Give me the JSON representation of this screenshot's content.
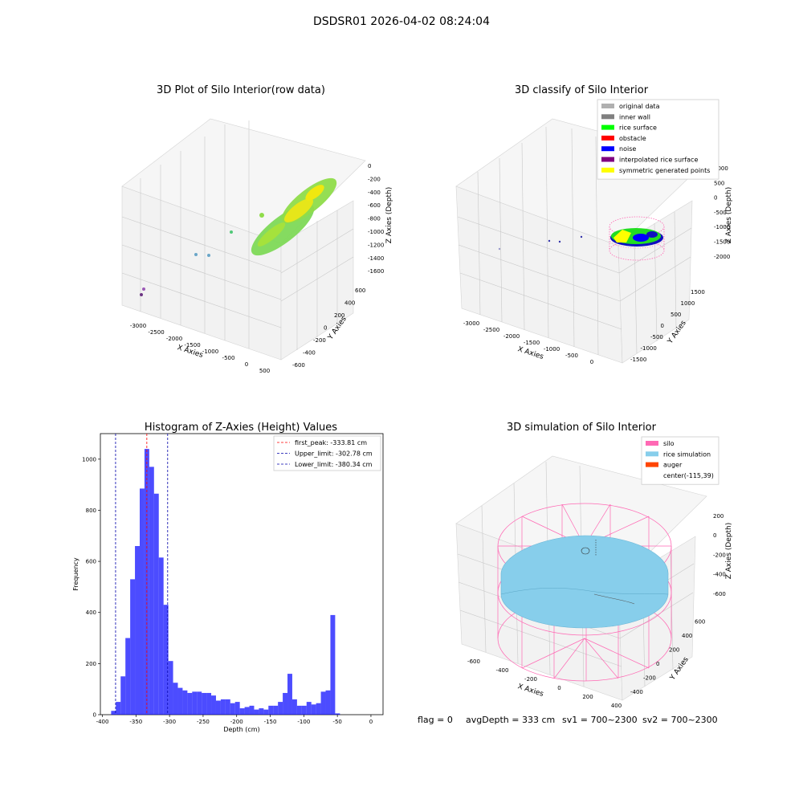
{
  "suptitle": "DSDSR01 2026-04-02 08:24:04",
  "status": {
    "flag": "flag = 0",
    "avg_depth": "avgDepth = 333 cm",
    "sv1": "sv1 = 700~2300",
    "sv2": "sv2 = 700~2300"
  },
  "plot_raw": {
    "title": "3D Plot of Silo Interior(row data)",
    "xlabel": "X Axies",
    "ylabel": "Y Axies",
    "zlabel": "Z Axies (Depth)",
    "xticks": [
      "-3000",
      "-2500",
      "-2000",
      "-1500",
      "-1000",
      "-500",
      "0",
      "500"
    ],
    "yticks": [
      "-600",
      "-400",
      "-200",
      "0",
      "200",
      "400",
      "600"
    ],
    "zticks": [
      "0",
      "-200",
      "-400",
      "-600",
      "-800",
      "-1000",
      "-1200",
      "-1400",
      "-1600"
    ]
  },
  "plot_classify": {
    "title": "3D classify of Silo Interior",
    "xlabel": "X Axies",
    "ylabel": "Y Axies",
    "zlabel": "Z Axies (Depth)",
    "xticks": [
      "-3000",
      "-2500",
      "-2000",
      "-1500",
      "-1000",
      "-500",
      "0"
    ],
    "yticks": [
      "-1500",
      "-1000",
      "-500",
      "0",
      "500",
      "1000",
      "1500"
    ],
    "zticks": [
      "1000",
      "500",
      "0",
      "-500",
      "-1000",
      "-1500",
      "-2000"
    ],
    "legend": [
      {
        "label": "original data",
        "color": "#b0b0b0"
      },
      {
        "label": "inner wall",
        "color": "#808080"
      },
      {
        "label": "rice surface",
        "color": "#00ff00"
      },
      {
        "label": "obstacle",
        "color": "#ff0000"
      },
      {
        "label": "noise",
        "color": "#0000ff"
      },
      {
        "label": "interpolated rice surface",
        "color": "#800080"
      },
      {
        "label": "symmetric generated points",
        "color": "#ffff00"
      }
    ]
  },
  "plot_sim": {
    "title": "3D simulation of Silo Interior",
    "xlabel": "X Axies",
    "ylabel": "Y Axies",
    "zlabel": "Z Axies (Depth)",
    "xticks": [
      "-600",
      "-400",
      "-200",
      "0",
      "200",
      "400"
    ],
    "yticks": [
      "-400",
      "-200",
      "0",
      "200",
      "400",
      "600"
    ],
    "zticks": [
      "200",
      "0",
      "-200",
      "-400",
      "-600"
    ],
    "legend": [
      {
        "label": "silo",
        "color": "#ff69b4"
      },
      {
        "label": "rice simulation",
        "color": "#87ceeb"
      },
      {
        "label": "auger",
        "color": "#ff4500"
      },
      {
        "label": "center(-115,39)",
        "color": ""
      }
    ]
  },
  "chart_data": {
    "type": "bar",
    "title": "Histogram of Z-Axies (Height) Values",
    "xlabel": "Depth (cm)",
    "ylabel": "Frequency",
    "xlim": [
      -403,
      18
    ],
    "ylim": [
      0,
      1100
    ],
    "xticks": [
      -400,
      -350,
      -300,
      -250,
      -200,
      -150,
      -100,
      -50,
      0
    ],
    "yticks": [
      0,
      200,
      400,
      600,
      800,
      1000
    ],
    "bar_width": 7.1,
    "bar_color": "#0000ff",
    "bins": [
      -387,
      -379.9,
      -372.8,
      -365.7,
      -358.6,
      -351.5,
      -344.4,
      -337.3,
      -330.2,
      -323.1,
      -316,
      -308.9,
      -301.8,
      -294.7,
      -287.6,
      -280.5,
      -273.4,
      -266.3,
      -259.2,
      -252.1,
      -245,
      -237.9,
      -230.8,
      -223.7,
      -216.6,
      -209.5,
      -202.4,
      -195.3,
      -188.2,
      -181.1,
      -174,
      -166.9,
      -159.8,
      -152.7,
      -145.6,
      -138.5,
      -131.4,
      -124.3,
      -117.2,
      -110.1,
      -103,
      -95.9,
      -88.8,
      -81.7,
      -74.6,
      -67.5,
      -60.4,
      -53.3,
      -46.2,
      -39.1,
      -32,
      -24.9,
      -17.8,
      -10.7,
      -3.6
    ],
    "values": [
      15,
      50,
      150,
      300,
      530,
      660,
      885,
      1040,
      970,
      865,
      615,
      430,
      210,
      125,
      105,
      95,
      85,
      90,
      90,
      85,
      85,
      75,
      55,
      60,
      60,
      45,
      50,
      25,
      30,
      35,
      20,
      25,
      20,
      35,
      35,
      50,
      85,
      160,
      60,
      35,
      35,
      50,
      40,
      45,
      90,
      95,
      390,
      5,
      0,
      0,
      0,
      0,
      0,
      0,
      0
    ],
    "vlines": [
      {
        "x": -333.81,
        "color": "#ff0000",
        "label": "first_peak: -333.81 cm"
      },
      {
        "x": -302.78,
        "color": "#0000aa",
        "label": "Upper_limit: -302.78 cm"
      },
      {
        "x": -380.34,
        "color": "#0000aa",
        "label": "Lower_limit: -380.34 cm"
      }
    ]
  }
}
